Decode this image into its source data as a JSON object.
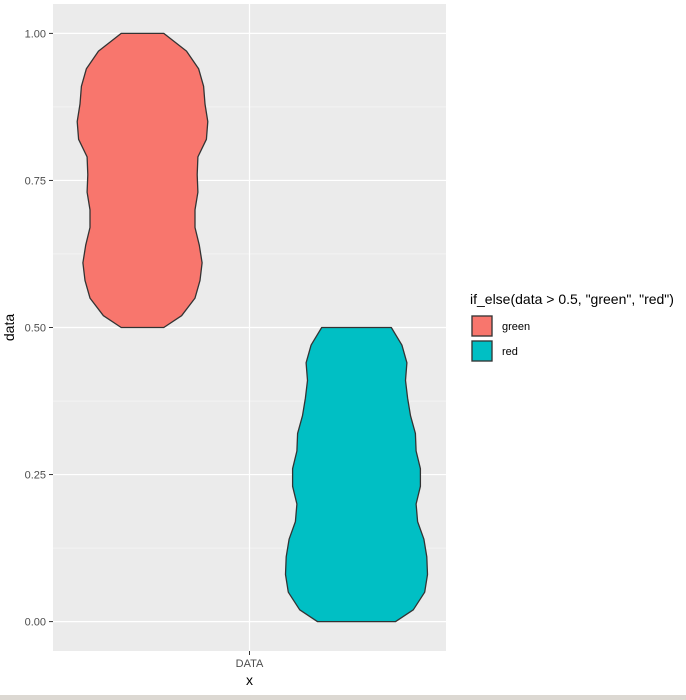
{
  "chart_data": {
    "type": "violin",
    "xlabel": "x",
    "ylabel": "data",
    "categories": [
      "DATA"
    ],
    "yticks": [
      0.0,
      0.25,
      0.5,
      0.75,
      1.0
    ],
    "ytick_labels": [
      "0.00",
      "0.25",
      "0.50",
      "0.75",
      "1.00"
    ],
    "ylim": [
      -0.05,
      1.05
    ],
    "grid": true,
    "legend": {
      "title": "if_else(data > 0.5, \"green\", \"red\")",
      "placement": "right",
      "entries": [
        {
          "label": "green",
          "color": "#F8766D"
        },
        {
          "label": "red",
          "color": "#00BFC4"
        }
      ]
    },
    "series": [
      {
        "name": "green",
        "category": "DATA",
        "color": "#F8766D",
        "y_range": [
          0.5,
          1.0
        ],
        "density_profile": [
          [
            0.5,
            0.3
          ],
          [
            0.52,
            0.55
          ],
          [
            0.55,
            0.74
          ],
          [
            0.58,
            0.81
          ],
          [
            0.61,
            0.84
          ],
          [
            0.64,
            0.8
          ],
          [
            0.67,
            0.74
          ],
          [
            0.7,
            0.74
          ],
          [
            0.73,
            0.78
          ],
          [
            0.76,
            0.77
          ],
          [
            0.79,
            0.78
          ],
          [
            0.82,
            0.9
          ],
          [
            0.85,
            0.92
          ],
          [
            0.88,
            0.88
          ],
          [
            0.91,
            0.86
          ],
          [
            0.94,
            0.79
          ],
          [
            0.97,
            0.62
          ],
          [
            1.0,
            0.3
          ]
        ]
      },
      {
        "name": "red",
        "category": "DATA",
        "color": "#00BFC4",
        "y_range": [
          0.0,
          0.5
        ],
        "density_profile": [
          [
            0.0,
            0.55
          ],
          [
            0.02,
            0.8
          ],
          [
            0.05,
            0.96
          ],
          [
            0.08,
            1.0
          ],
          [
            0.11,
            0.99
          ],
          [
            0.14,
            0.95
          ],
          [
            0.17,
            0.86
          ],
          [
            0.2,
            0.84
          ],
          [
            0.23,
            0.9
          ],
          [
            0.26,
            0.9
          ],
          [
            0.29,
            0.84
          ],
          [
            0.32,
            0.83
          ],
          [
            0.35,
            0.76
          ],
          [
            0.38,
            0.72
          ],
          [
            0.41,
            0.69
          ],
          [
            0.44,
            0.71
          ],
          [
            0.47,
            0.64
          ],
          [
            0.5,
            0.49
          ]
        ]
      }
    ]
  }
}
